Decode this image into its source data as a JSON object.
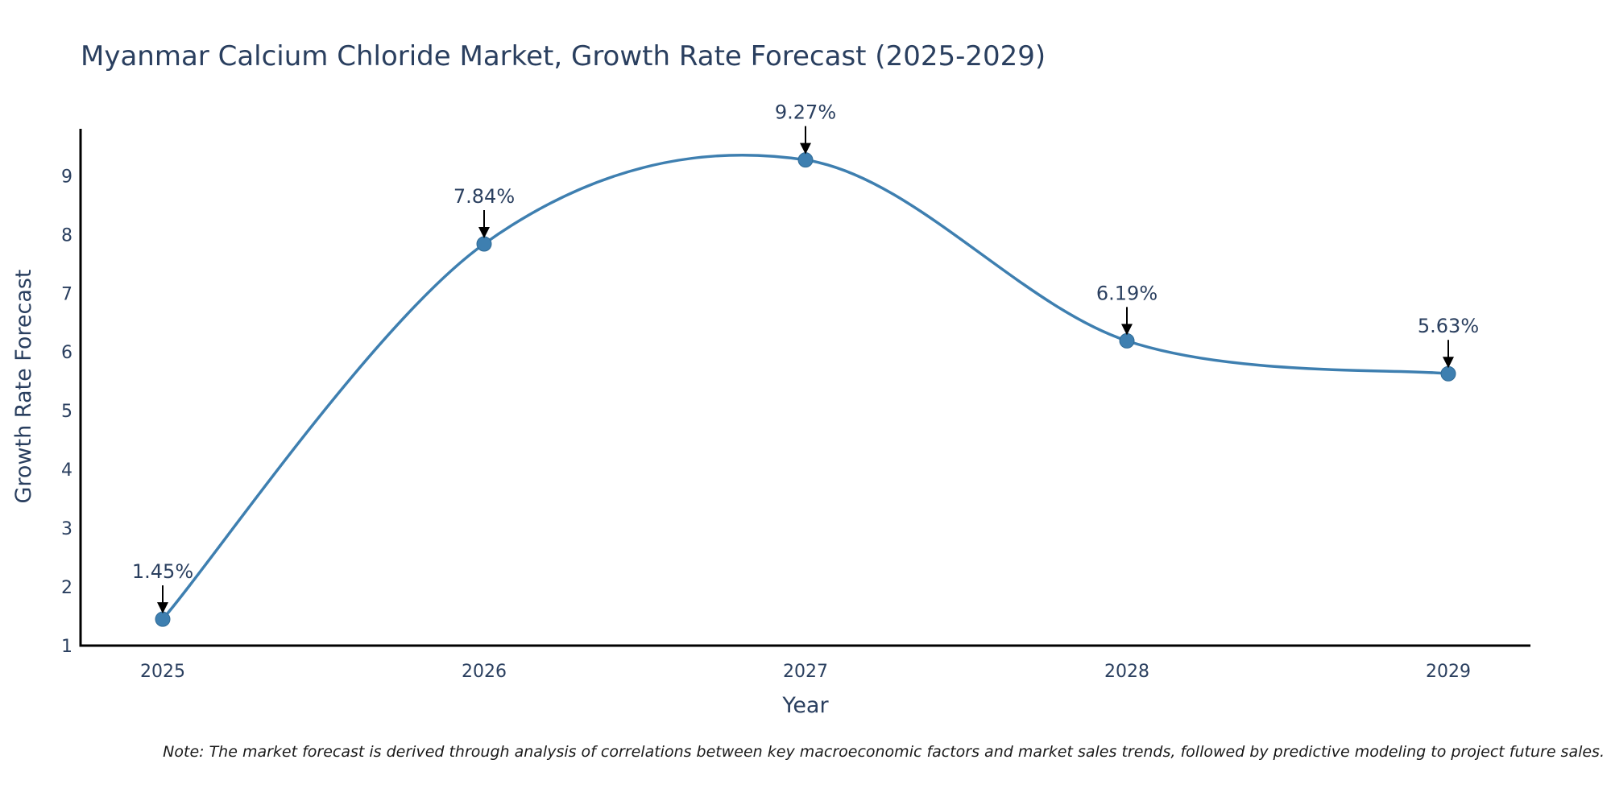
{
  "chart_data": {
    "type": "line",
    "title": "Myanmar Calcium Chloride Market, Growth Rate Forecast (2025-2029)",
    "xlabel": "Year",
    "ylabel": "Growth Rate Forecast",
    "categories": [
      "2025",
      "2026",
      "2027",
      "2028",
      "2029"
    ],
    "series": [
      {
        "name": "Growth Rate Forecast",
        "values": [
          1.45,
          7.84,
          9.27,
          6.19,
          5.63
        ],
        "color": "#3e7fb0"
      }
    ],
    "data_labels": [
      "1.45%",
      "7.84%",
      "9.27%",
      "6.19%",
      "5.63%"
    ],
    "yticks": [
      "1",
      "2",
      "3",
      "4",
      "5",
      "6",
      "7",
      "8",
      "9"
    ],
    "ylim": [
      1,
      9.8
    ],
    "line_shape": "spline",
    "grid": false,
    "note": "Note: The market forecast is derived through analysis of correlations between key macroeconomic factors and market sales trends, followed by predictive modeling to project future sales."
  }
}
